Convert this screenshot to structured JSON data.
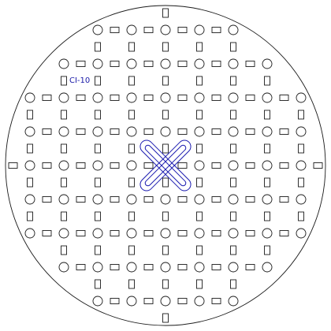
{
  "drawing": {
    "label": "CI-10",
    "colors": {
      "stroke": "#1a1a1a",
      "background": "#ffffff",
      "selected": "#1a1ab0"
    }
  }
}
